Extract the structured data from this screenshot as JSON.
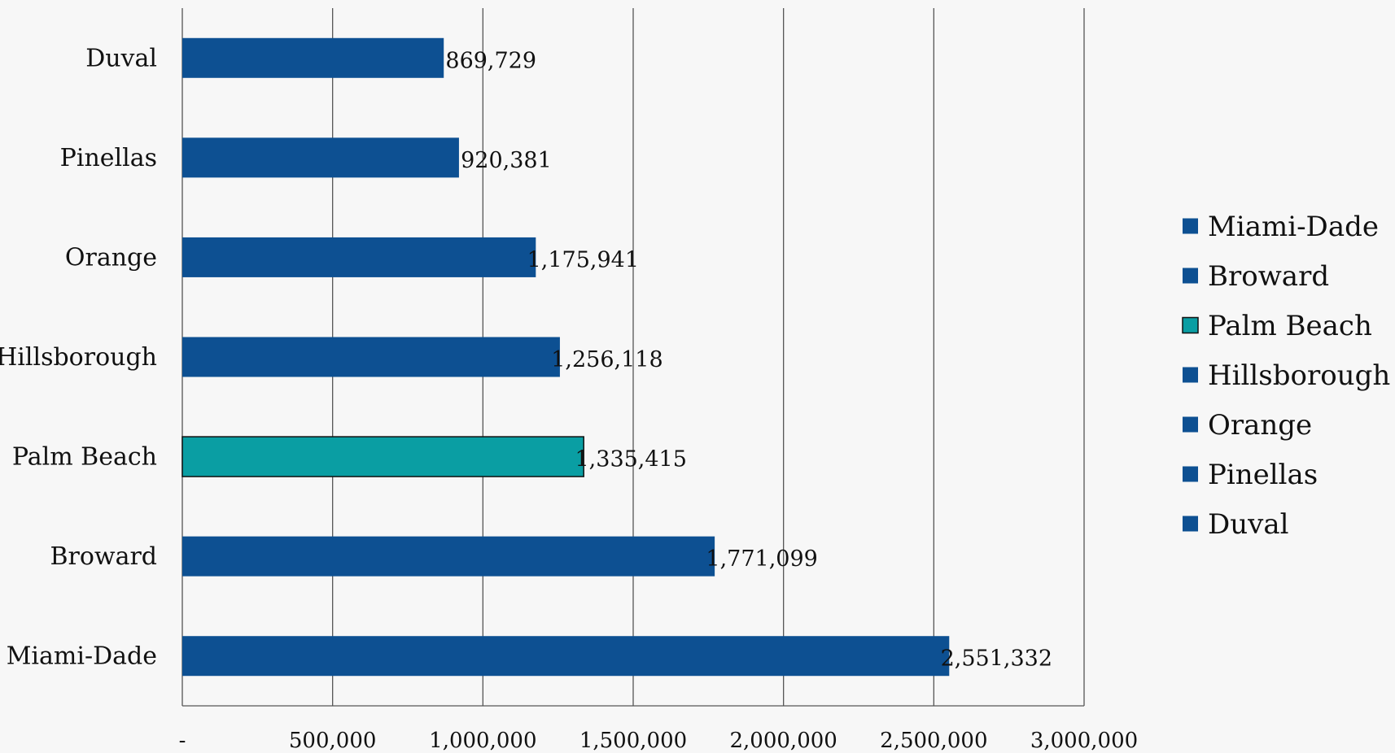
{
  "chart_data": {
    "type": "bar",
    "orientation": "horizontal",
    "categories": [
      "Miami-Dade",
      "Broward",
      "Palm Beach",
      "Hillsborough",
      "Orange",
      "Pinellas",
      "Duval"
    ],
    "values": [
      2551332,
      1771099,
      1335415,
      1256118,
      1175941,
      920381,
      869729
    ],
    "value_labels": [
      "2,551,332",
      "1,771,099",
      "1,335,415",
      "1,256,118",
      "1,175,941",
      "920,381",
      "869,729"
    ],
    "xlim": [
      0,
      3000000
    ],
    "xticks": [
      0,
      500000,
      1000000,
      1500000,
      2000000,
      2500000,
      3000000
    ],
    "xtick_labels": [
      "-",
      "500,000",
      "1,000,000",
      "1,500,000",
      "2,000,000",
      "2,500,000",
      "3,000,000"
    ],
    "grid": "vertical",
    "legend_position": "right",
    "legend": [
      "Miami-Dade",
      "Broward",
      "Palm Beach",
      "Hillsborough",
      "Orange",
      "Pinellas",
      "Duval"
    ],
    "colors": {
      "default": "#0d5092",
      "highlight": "#0a9ea3",
      "highlight_category": "Palm Beach",
      "grid": "#555555",
      "background": "#f7f7f7"
    }
  }
}
